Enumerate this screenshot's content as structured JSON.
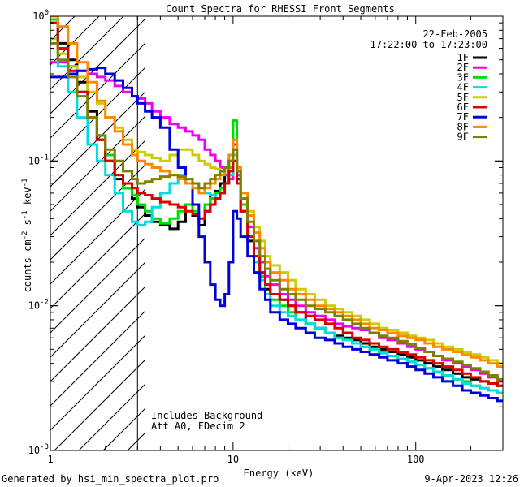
{
  "chart_data": {
    "type": "line",
    "title": "Count Spectra for RHESSI Front Segments",
    "xlabel": "Energy (keV)",
    "ylabel_parts": [
      "counts cm",
      "-2",
      " s",
      "-1",
      " keV",
      "-1"
    ],
    "x_scale": "log",
    "y_scale": "log",
    "xlim": [
      1.0,
      300.0
    ],
    "ylim": [
      0.001,
      1.0
    ],
    "x_ticks": [
      {
        "value": 1,
        "label": "1"
      },
      {
        "value": 10,
        "label": "10"
      },
      {
        "value": 100,
        "label": "100"
      }
    ],
    "y_ticks": [
      {
        "value": 1,
        "mant": "10",
        "exp": "0"
      },
      {
        "value": 0.1,
        "mant": "10",
        "exp": "-1"
      },
      {
        "value": 0.01,
        "mant": "10",
        "exp": "-2"
      },
      {
        "value": 0.001,
        "mant": "10",
        "exp": "-3"
      }
    ],
    "date": "22-Feb-2005",
    "time_range": "17:22:00 to 17:23:00",
    "annotation_lines": [
      "Includes Background",
      "Att A0, FDecim 2"
    ],
    "excluded_region_max_kev": 3.0,
    "energy_bins": [
      1.0,
      1.1,
      1.25,
      1.4,
      1.6,
      1.8,
      2.0,
      2.25,
      2.5,
      2.8,
      3.0,
      3.3,
      3.6,
      4.0,
      4.5,
      5.0,
      5.5,
      6.0,
      6.5,
      7.0,
      7.5,
      8.0,
      8.5,
      9.0,
      9.5,
      10.0,
      10.5,
      11.0,
      12.0,
      13.0,
      14.0,
      15.0,
      16.0,
      18.0,
      20.0,
      22.0,
      25.0,
      28.0,
      32.0,
      36.0,
      40.0,
      45.0,
      50.0,
      56.0,
      63.0,
      70.0,
      80.0,
      90.0,
      100.0,
      112.0,
      125.0,
      140.0,
      160.0,
      180.0,
      200.0,
      225.0,
      250.0,
      280.0,
      300.0
    ],
    "series": [
      {
        "name": "1F",
        "color": "#000000",
        "values": [
          0.9,
          0.65,
          0.5,
          0.35,
          0.22,
          0.14,
          0.1,
          0.075,
          0.065,
          0.055,
          0.048,
          0.042,
          0.038,
          0.036,
          0.034,
          0.038,
          0.05,
          0.042,
          0.036,
          0.045,
          0.058,
          0.062,
          0.07,
          0.08,
          0.1,
          0.12,
          0.075,
          0.045,
          0.028,
          0.02,
          0.016,
          0.013,
          0.012,
          0.011,
          0.01,
          0.009,
          0.0075,
          0.007,
          0.0065,
          0.0062,
          0.006,
          0.0058,
          0.0055,
          0.0052,
          0.005,
          0.0048,
          0.0046,
          0.0044,
          0.0042,
          0.004,
          0.0038,
          0.0036,
          0.0034,
          0.0032,
          0.0031,
          0.003,
          0.0029,
          0.0028
        ]
      },
      {
        "name": "2F",
        "color": "#ee00ee",
        "values": [
          0.48,
          0.48,
          0.45,
          0.42,
          0.4,
          0.38,
          0.36,
          0.33,
          0.3,
          0.28,
          0.27,
          0.25,
          0.22,
          0.2,
          0.18,
          0.17,
          0.16,
          0.15,
          0.14,
          0.12,
          0.11,
          0.1,
          0.09,
          0.08,
          0.075,
          0.13,
          0.08,
          0.05,
          0.035,
          0.025,
          0.02,
          0.016,
          0.014,
          0.012,
          0.011,
          0.01,
          0.009,
          0.0085,
          0.008,
          0.0075,
          0.0072,
          0.007,
          0.0068,
          0.0065,
          0.006,
          0.0058,
          0.0055,
          0.0052,
          0.005,
          0.0048,
          0.0045,
          0.0042,
          0.004,
          0.0038,
          0.0036,
          0.0034,
          0.0032,
          0.003
        ]
      },
      {
        "name": "3F",
        "color": "#00dd00",
        "values": [
          0.95,
          0.6,
          0.42,
          0.3,
          0.2,
          0.15,
          0.11,
          0.08,
          0.065,
          0.058,
          0.05,
          0.045,
          0.04,
          0.037,
          0.04,
          0.045,
          0.05,
          0.045,
          0.04,
          0.05,
          0.055,
          0.06,
          0.065,
          0.07,
          0.09,
          0.19,
          0.09,
          0.05,
          0.03,
          0.022,
          0.016,
          0.012,
          0.011,
          0.01,
          0.009,
          0.008,
          0.0075,
          0.007,
          0.0065,
          0.006,
          0.0058,
          0.0055,
          0.0052,
          0.005,
          0.0048,
          0.0045,
          0.0043,
          0.0041,
          0.0039,
          0.0037,
          0.0035,
          0.0033,
          0.0031,
          0.003,
          0.0028,
          0.0027,
          0.0026,
          0.0025
        ]
      },
      {
        "name": "4F",
        "color": "#00dddd",
        "values": [
          0.7,
          0.45,
          0.3,
          0.2,
          0.13,
          0.1,
          0.08,
          0.06,
          0.045,
          0.038,
          0.036,
          0.038,
          0.048,
          0.06,
          0.07,
          0.08,
          0.075,
          0.07,
          0.065,
          0.06,
          0.058,
          0.055,
          0.06,
          0.07,
          0.08,
          0.11,
          0.07,
          0.045,
          0.03,
          0.02,
          0.015,
          0.012,
          0.01,
          0.009,
          0.0085,
          0.008,
          0.0075,
          0.007,
          0.0065,
          0.006,
          0.0058,
          0.0055,
          0.0052,
          0.005,
          0.0047,
          0.0045,
          0.0043,
          0.0041,
          0.0039,
          0.0037,
          0.0035,
          0.0033,
          0.0031,
          0.0029,
          0.0028,
          0.0027,
          0.0026,
          0.0025
        ]
      },
      {
        "name": "5F",
        "color": "#cccc00",
        "values": [
          0.7,
          0.55,
          0.45,
          0.38,
          0.3,
          0.25,
          0.2,
          0.17,
          0.14,
          0.12,
          0.115,
          0.11,
          0.105,
          0.1,
          0.11,
          0.12,
          0.12,
          0.11,
          0.1,
          0.095,
          0.09,
          0.088,
          0.085,
          0.09,
          0.1,
          0.12,
          0.09,
          0.06,
          0.045,
          0.035,
          0.028,
          0.022,
          0.019,
          0.017,
          0.015,
          0.013,
          0.012,
          0.011,
          0.01,
          0.0095,
          0.009,
          0.0085,
          0.008,
          0.0075,
          0.007,
          0.0068,
          0.0065,
          0.0062,
          0.006,
          0.0058,
          0.0055,
          0.0052,
          0.005,
          0.0048,
          0.0046,
          0.0044,
          0.0042,
          0.004
        ]
      },
      {
        "name": "6F",
        "color": "#dd0000",
        "values": [
          0.9,
          0.6,
          0.42,
          0.3,
          0.2,
          0.14,
          0.1,
          0.08,
          0.07,
          0.065,
          0.06,
          0.058,
          0.055,
          0.052,
          0.05,
          0.048,
          0.045,
          0.043,
          0.04,
          0.045,
          0.05,
          0.055,
          0.06,
          0.07,
          0.085,
          0.1,
          0.07,
          0.045,
          0.03,
          0.022,
          0.017,
          0.014,
          0.012,
          0.011,
          0.01,
          0.009,
          0.0085,
          0.008,
          0.0075,
          0.007,
          0.0065,
          0.006,
          0.0058,
          0.0055,
          0.0052,
          0.005,
          0.0048,
          0.0046,
          0.0044,
          0.0042,
          0.004,
          0.0038,
          0.0036,
          0.0034,
          0.0032,
          0.003,
          0.0029,
          0.0028
        ]
      },
      {
        "name": "7F",
        "color": "#0000dd",
        "values": [
          0.38,
          0.38,
          0.4,
          0.42,
          0.43,
          0.44,
          0.4,
          0.36,
          0.32,
          0.28,
          0.25,
          0.22,
          0.2,
          0.17,
          0.12,
          0.09,
          0.07,
          0.05,
          0.03,
          0.02,
          0.014,
          0.011,
          0.01,
          0.012,
          0.02,
          0.045,
          0.04,
          0.03,
          0.022,
          0.017,
          0.013,
          0.011,
          0.009,
          0.008,
          0.0075,
          0.007,
          0.0065,
          0.006,
          0.0058,
          0.0055,
          0.0052,
          0.005,
          0.0048,
          0.0046,
          0.0044,
          0.0042,
          0.004,
          0.0038,
          0.0036,
          0.0034,
          0.0032,
          0.003,
          0.0028,
          0.0026,
          0.0025,
          0.0024,
          0.0023,
          0.0022
        ]
      },
      {
        "name": "8F",
        "color": "#ff8800",
        "values": [
          1.0,
          0.85,
          0.65,
          0.48,
          0.35,
          0.26,
          0.2,
          0.16,
          0.13,
          0.11,
          0.1,
          0.095,
          0.09,
          0.085,
          0.08,
          0.075,
          0.07,
          0.065,
          0.06,
          0.065,
          0.07,
          0.075,
          0.08,
          0.09,
          0.11,
          0.14,
          0.09,
          0.06,
          0.042,
          0.032,
          0.025,
          0.02,
          0.017,
          0.015,
          0.013,
          0.012,
          0.011,
          0.01,
          0.0095,
          0.009,
          0.0085,
          0.008,
          0.0075,
          0.007,
          0.0068,
          0.0065,
          0.0062,
          0.006,
          0.0058,
          0.0055,
          0.0052,
          0.005,
          0.0048,
          0.0046,
          0.0044,
          0.0042,
          0.004,
          0.0038
        ]
      },
      {
        "name": "9F",
        "color": "#808000",
        "values": [
          0.65,
          0.5,
          0.38,
          0.28,
          0.2,
          0.15,
          0.12,
          0.1,
          0.085,
          0.075,
          0.07,
          0.072,
          0.075,
          0.078,
          0.08,
          0.078,
          0.075,
          0.07,
          0.065,
          0.07,
          0.075,
          0.08,
          0.085,
          0.09,
          0.1,
          0.12,
          0.085,
          0.055,
          0.038,
          0.028,
          0.022,
          0.018,
          0.015,
          0.013,
          0.012,
          0.011,
          0.01,
          0.0095,
          0.009,
          0.0085,
          0.008,
          0.0075,
          0.007,
          0.0065,
          0.0062,
          0.006,
          0.0057,
          0.0054,
          0.0051,
          0.0048,
          0.0045,
          0.0043,
          0.0041,
          0.0039,
          0.0037,
          0.0035,
          0.0033,
          0.0031
        ]
      }
    ]
  },
  "footer": {
    "generated_by": "Generated by hsi_min_spectra_plot.pro",
    "timestamp": "9-Apr-2023 12:26"
  }
}
